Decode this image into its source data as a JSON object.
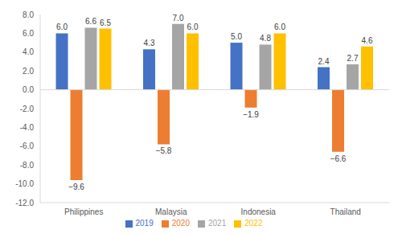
{
  "chart_data": {
    "type": "bar",
    "categories": [
      "Philippines",
      "Malaysia",
      "Indonesia",
      "Thailand"
    ],
    "series": [
      {
        "name": "2019",
        "color": "#4472c4",
        "values": [
          6.0,
          4.3,
          5.0,
          2.4
        ],
        "value_labels": [
          "6.0",
          "4.3",
          "5.0",
          "2.4"
        ]
      },
      {
        "name": "2020",
        "color": "#ed7d31",
        "values": [
          -9.6,
          -5.8,
          -1.9,
          -6.6
        ],
        "value_labels": [
          "−9.6",
          "−5.8",
          "−1.9",
          "−6.6"
        ]
      },
      {
        "name": "2021",
        "color": "#a5a5a5",
        "values": [
          6.6,
          7.0,
          4.8,
          2.7
        ],
        "value_labels": [
          "6.6",
          "7.0",
          "4.8",
          "2.7"
        ]
      },
      {
        "name": "2022",
        "color": "#ffc000",
        "values": [
          6.5,
          6.0,
          6.0,
          4.6
        ],
        "value_labels": [
          "6.5",
          "6.0",
          "6.0",
          "4.6"
        ]
      }
    ],
    "ylim": [
      -12,
      8
    ],
    "yticks": [
      {
        "value": -12,
        "label": "-12.0"
      },
      {
        "value": -10,
        "label": "-10.0"
      },
      {
        "value": -8,
        "label": "-8.0"
      },
      {
        "value": -6,
        "label": "-6.0"
      },
      {
        "value": -4,
        "label": "-4.0"
      },
      {
        "value": -2,
        "label": "-2.0"
      },
      {
        "value": 0,
        "label": "0.0"
      },
      {
        "value": 2,
        "label": "2.0"
      },
      {
        "value": 4,
        "label": "4.0"
      },
      {
        "value": 6,
        "label": "6.0"
      },
      {
        "value": 8,
        "label": "8.0"
      }
    ],
    "grid": false,
    "legend": "bottom",
    "data_labels": true
  }
}
